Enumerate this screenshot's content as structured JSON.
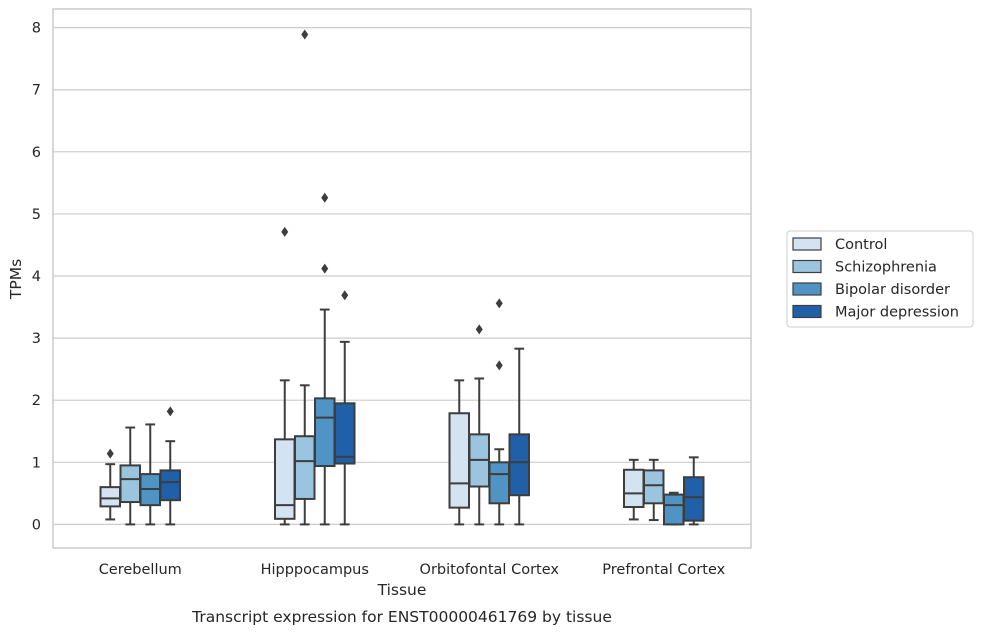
{
  "chart_data": {
    "type": "boxplot",
    "title": "Transcript expression for ENST00000461769 by tissue",
    "xlabel": "Tissue",
    "ylabel": "TPMs",
    "ylim": [
      -0.38,
      8.3
    ],
    "yticks": [
      0,
      1,
      2,
      3,
      4,
      5,
      6,
      7,
      8
    ],
    "grid": "horizontal",
    "legend_position": "right",
    "categories": [
      "Cerebellum",
      "Hipppocampus",
      "Orbitofontal Cortex",
      "Prefrontal Cortex"
    ],
    "series": [
      {
        "name": "Control",
        "color": "#d4e3f1",
        "boxes": [
          {
            "whislo": 0.08,
            "q1": 0.29,
            "med": 0.42,
            "q3": 0.6,
            "whishi": 0.97,
            "fliers": [
              1.14
            ]
          },
          {
            "whislo": 0.0,
            "q1": 0.09,
            "med": 0.31,
            "q3": 1.37,
            "whishi": 2.32,
            "fliers": [
              4.71
            ]
          },
          {
            "whislo": 0.0,
            "q1": 0.27,
            "med": 0.66,
            "q3": 1.79,
            "whishi": 2.32,
            "fliers": []
          },
          {
            "whislo": 0.08,
            "q1": 0.28,
            "med": 0.5,
            "q3": 0.88,
            "whishi": 1.04,
            "fliers": []
          }
        ]
      },
      {
        "name": "Schizophrenia",
        "color": "#9bc4de",
        "boxes": [
          {
            "whislo": 0.0,
            "q1": 0.36,
            "med": 0.73,
            "q3": 0.95,
            "whishi": 1.56,
            "fliers": []
          },
          {
            "whislo": 0.0,
            "q1": 0.41,
            "med": 1.02,
            "q3": 1.42,
            "whishi": 2.24,
            "fliers": [
              7.89
            ]
          },
          {
            "whislo": 0.0,
            "q1": 0.61,
            "med": 1.04,
            "q3": 1.45,
            "whishi": 2.35,
            "fliers": [
              3.14
            ]
          },
          {
            "whislo": 0.07,
            "q1": 0.34,
            "med": 0.63,
            "q3": 0.87,
            "whishi": 1.04,
            "fliers": []
          }
        ]
      },
      {
        "name": "Bipolar disorder",
        "color": "#4f94c4",
        "boxes": [
          {
            "whislo": 0.0,
            "q1": 0.31,
            "med": 0.57,
            "q3": 0.81,
            "whishi": 1.61,
            "fliers": []
          },
          {
            "whislo": 0.0,
            "q1": 0.94,
            "med": 1.72,
            "q3": 2.03,
            "whishi": 3.46,
            "fliers": [
              4.12,
              5.26
            ]
          },
          {
            "whislo": 0.0,
            "q1": 0.34,
            "med": 0.81,
            "q3": 1.0,
            "whishi": 1.21,
            "fliers": [
              2.56,
              3.56
            ]
          },
          {
            "whislo": 0.0,
            "q1": 0.0,
            "med": 0.31,
            "q3": 0.48,
            "whishi": 0.51,
            "fliers": []
          }
        ]
      },
      {
        "name": "Major depression",
        "color": "#2060a8",
        "boxes": [
          {
            "whislo": 0.0,
            "q1": 0.39,
            "med": 0.68,
            "q3": 0.87,
            "whishi": 1.34,
            "fliers": [
              1.82
            ]
          },
          {
            "whislo": 0.0,
            "q1": 0.98,
            "med": 1.09,
            "q3": 1.95,
            "whishi": 2.94,
            "fliers": [
              3.69
            ]
          },
          {
            "whislo": 0.0,
            "q1": 0.47,
            "med": 1.0,
            "q3": 1.45,
            "whishi": 2.83,
            "fliers": []
          },
          {
            "whislo": 0.0,
            "q1": 0.06,
            "med": 0.44,
            "q3": 0.76,
            "whishi": 1.08,
            "fliers": []
          }
        ]
      }
    ]
  }
}
